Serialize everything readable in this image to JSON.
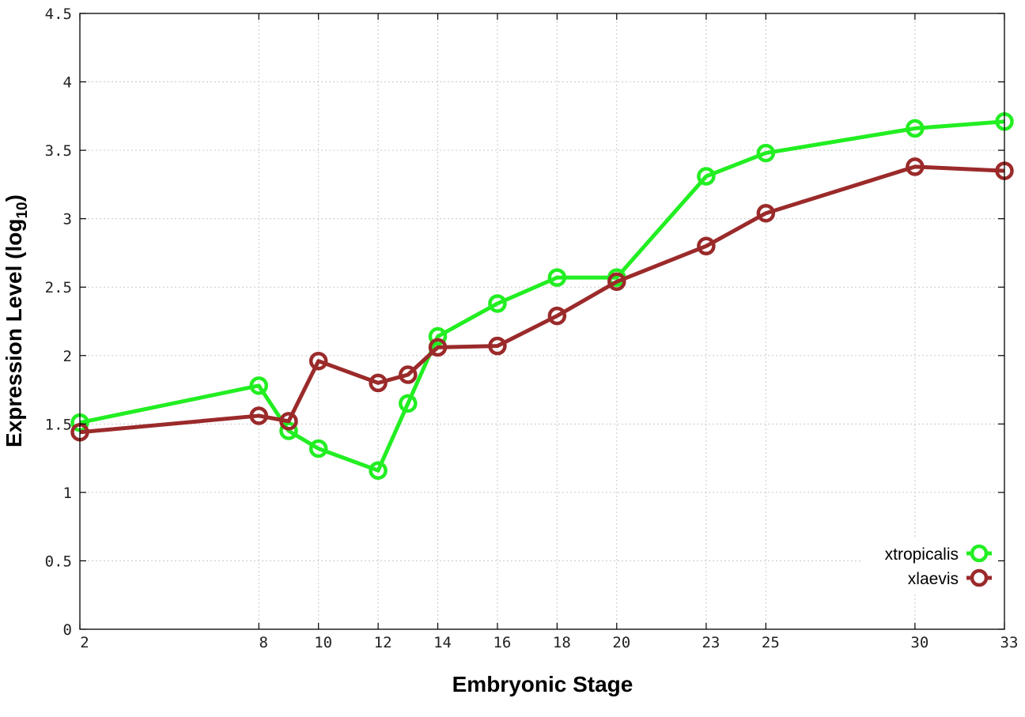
{
  "chart_data": {
    "type": "line",
    "title": "",
    "xlabel": "Embryonic Stage",
    "ylabel_main": "Expression Level (log",
    "ylabel_sub": "10",
    "ylabel_end": ")",
    "x": [
      2,
      8,
      9,
      10,
      12,
      13,
      14,
      16,
      18,
      20,
      23,
      25,
      30,
      33
    ],
    "xticks": [
      "2",
      "8",
      "10",
      "12",
      "14",
      "16",
      "18",
      "20",
      "23",
      "25",
      "30",
      "33"
    ],
    "xtick_values": [
      2,
      8,
      10,
      12,
      14,
      16,
      18,
      20,
      23,
      25,
      30,
      33
    ],
    "xlim": [
      2,
      33
    ],
    "yticks": [
      "0",
      "0.5",
      "1",
      "1.5",
      "2",
      "2.5",
      "3",
      "3.5",
      "4",
      "4.5"
    ],
    "ytick_values": [
      0,
      0.5,
      1,
      1.5,
      2,
      2.5,
      3,
      3.5,
      4,
      4.5
    ],
    "ylim": [
      0,
      4.5
    ],
    "grid": true,
    "legend_position": "bottom-right",
    "series": [
      {
        "name": "xtropicalis",
        "color": "#22ee22",
        "marker": "open-circle",
        "values": [
          1.51,
          1.78,
          1.45,
          1.32,
          1.16,
          1.65,
          2.14,
          2.38,
          2.57,
          2.57,
          3.31,
          3.48,
          3.66,
          3.71
        ]
      },
      {
        "name": "xlaevis",
        "color": "#9b2a2a",
        "marker": "open-circle",
        "values": [
          1.44,
          1.56,
          1.52,
          1.96,
          1.8,
          1.86,
          2.06,
          2.07,
          2.29,
          2.54,
          2.8,
          3.04,
          3.38,
          3.35
        ]
      }
    ]
  }
}
